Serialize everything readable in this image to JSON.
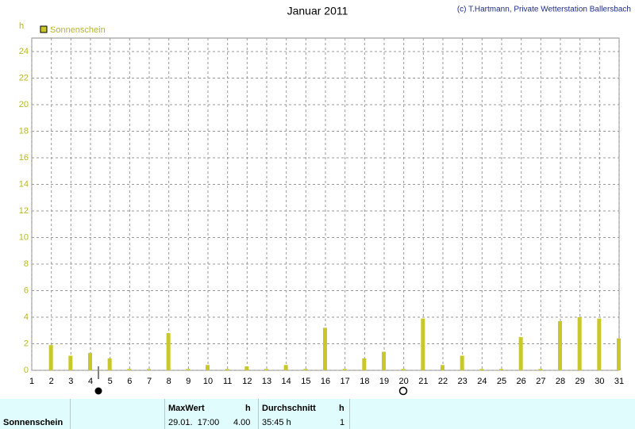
{
  "chart_data": {
    "type": "bar",
    "title": "Januar 2011",
    "credit": "(c) T.Hartmann, Private Wetterstation Ballersbach",
    "y_label": "h",
    "x": [
      2,
      3,
      4,
      5,
      6,
      7,
      8,
      9,
      10,
      11,
      12,
      13,
      14,
      15,
      16,
      17,
      18,
      19,
      20,
      21,
      22,
      23,
      24,
      25,
      26,
      27,
      28,
      29,
      30,
      31
    ],
    "series": [
      {
        "name": "Sonnenschein",
        "color": "#c8c82a",
        "values": [
          1.9,
          1.1,
          1.3,
          0.9,
          0.1,
          0.1,
          2.8,
          0.1,
          0.4,
          0.1,
          0.3,
          0.1,
          0.4,
          0.1,
          3.2,
          0.1,
          0.9,
          1.4,
          0.1,
          3.9,
          0.4,
          1.1,
          0.1,
          0.1,
          2.5,
          0.1,
          3.7,
          4.0,
          3.9,
          2.4
        ]
      }
    ],
    "xlim": [
      1,
      31
    ],
    "xticks": [
      1,
      2,
      3,
      4,
      5,
      6,
      7,
      8,
      9,
      10,
      11,
      12,
      13,
      14,
      15,
      16,
      17,
      18,
      19,
      20,
      21,
      22,
      23,
      24,
      25,
      26,
      27,
      28,
      29,
      30,
      31
    ],
    "ylim": [
      0,
      24
    ],
    "yticks": [
      0,
      2,
      4,
      6,
      8,
      10,
      12,
      14,
      16,
      18,
      20,
      22,
      24
    ],
    "grid": true
  },
  "table": {
    "row_label": "Sonnenschein",
    "max": {
      "header": "MaxWert",
      "unit": "h",
      "date": "29.01.  17:00",
      "value": "4.00"
    },
    "average": {
      "header": "Durchschnitt",
      "unit": "h",
      "value": "35:45 h",
      "count": "1"
    }
  }
}
